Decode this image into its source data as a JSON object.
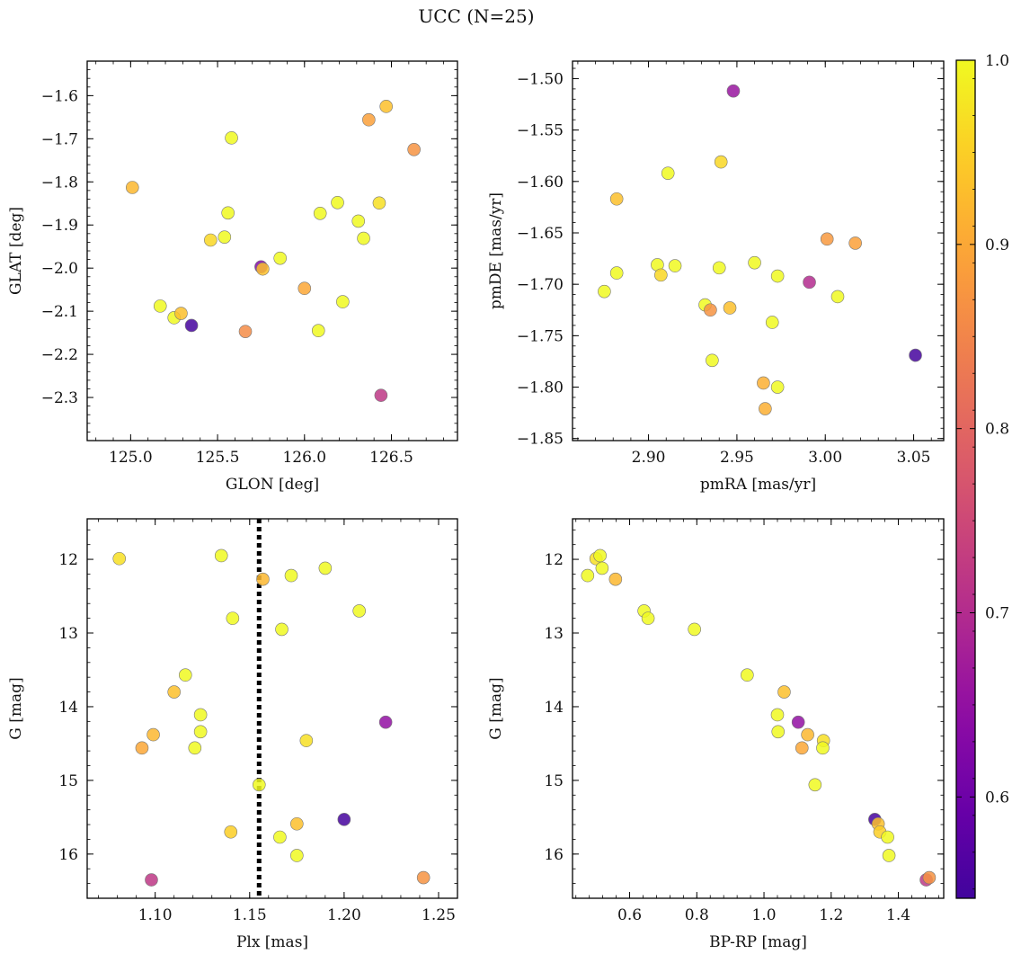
{
  "suptitle": "UCC (N=25)",
  "chart_data": {
    "type": "scatter",
    "colorbar": {
      "label": "",
      "min": 0.545,
      "max": 1.0,
      "ticks": [
        0.6,
        0.7,
        0.8,
        0.9,
        1.0
      ],
      "tick_labels": [
        "0.6",
        "0.7",
        "0.8",
        "0.9",
        "1.0"
      ],
      "colormap": "plasma"
    },
    "panels": [
      {
        "id": "glon-glat",
        "xlabel": "GLON [deg]",
        "ylabel": "GLAT [deg]",
        "xlim": [
          124.75,
          126.88
        ],
        "ylim": [
          -2.4,
          -1.52
        ],
        "y_inverted": false,
        "xticks": [
          125.0,
          125.5,
          126.0,
          126.5
        ],
        "xtick_labels": [
          "125.0",
          "125.5",
          "126.0",
          "126.5"
        ],
        "yticks": [
          -1.6,
          -1.7,
          -1.8,
          -1.9,
          -2.0,
          -2.1,
          -2.2,
          -2.3
        ],
        "ytick_labels": [
          "−1.6",
          "−1.7",
          "−1.8",
          "−1.9",
          "−2.0",
          "−2.1",
          "−2.2",
          "−2.3"
        ],
        "points": [
          {
            "x": 125.01,
            "y": -1.813,
            "c": 0.92
          },
          {
            "x": 125.17,
            "y": -2.088,
            "c": 1.0
          },
          {
            "x": 125.25,
            "y": -2.115,
            "c": 1.0
          },
          {
            "x": 125.29,
            "y": -2.105,
            "c": 0.93
          },
          {
            "x": 125.35,
            "y": -2.133,
            "c": 0.55
          },
          {
            "x": 125.46,
            "y": -1.935,
            "c": 0.96
          },
          {
            "x": 125.54,
            "y": -1.928,
            "c": 1.0
          },
          {
            "x": 125.56,
            "y": -1.872,
            "c": 1.0
          },
          {
            "x": 125.58,
            "y": -1.698,
            "c": 1.0
          },
          {
            "x": 125.66,
            "y": -2.147,
            "c": 0.86
          },
          {
            "x": 125.75,
            "y": -1.997,
            "c": 0.63
          },
          {
            "x": 125.76,
            "y": -2.002,
            "c": 0.93
          },
          {
            "x": 125.86,
            "y": -1.977,
            "c": 1.0
          },
          {
            "x": 126.0,
            "y": -2.047,
            "c": 0.9
          },
          {
            "x": 126.08,
            "y": -2.145,
            "c": 1.0
          },
          {
            "x": 126.09,
            "y": -1.873,
            "c": 1.0
          },
          {
            "x": 126.19,
            "y": -1.848,
            "c": 1.0
          },
          {
            "x": 126.22,
            "y": -2.078,
            "c": 1.0
          },
          {
            "x": 126.31,
            "y": -1.891,
            "c": 1.0
          },
          {
            "x": 126.34,
            "y": -1.931,
            "c": 1.0
          },
          {
            "x": 126.37,
            "y": -1.656,
            "c": 0.89
          },
          {
            "x": 126.43,
            "y": -1.849,
            "c": 0.97
          },
          {
            "x": 126.44,
            "y": -2.295,
            "c": 0.72
          },
          {
            "x": 126.47,
            "y": -1.625,
            "c": 0.93
          },
          {
            "x": 126.63,
            "y": -1.725,
            "c": 0.87
          }
        ]
      },
      {
        "id": "pmra-pmde",
        "xlabel": "pmRA [mas/yr]",
        "ylabel": "pmDE [mas/yr]",
        "xlim": [
          2.857,
          3.067
        ],
        "ylim": [
          -1.852,
          -1.483
        ],
        "y_inverted": false,
        "xticks": [
          2.9,
          2.95,
          3.0,
          3.05
        ],
        "xtick_labels": [
          "2.90",
          "2.95",
          "3.00",
          "3.05"
        ],
        "yticks": [
          -1.5,
          -1.55,
          -1.6,
          -1.65,
          -1.7,
          -1.75,
          -1.8,
          -1.85
        ],
        "ytick_labels": [
          "−1.50",
          "−1.55",
          "−1.60",
          "−1.65",
          "−1.70",
          "−1.75",
          "−1.80",
          "−1.85"
        ],
        "points": [
          {
            "x": 2.948,
            "y": -1.512,
            "c": 0.66
          },
          {
            "x": 2.941,
            "y": -1.581,
            "c": 0.96
          },
          {
            "x": 2.911,
            "y": -1.592,
            "c": 1.0
          },
          {
            "x": 2.882,
            "y": -1.617,
            "c": 0.93
          },
          {
            "x": 3.001,
            "y": -1.656,
            "c": 0.88
          },
          {
            "x": 3.017,
            "y": -1.66,
            "c": 0.89
          },
          {
            "x": 2.905,
            "y": -1.681,
            "c": 1.0
          },
          {
            "x": 2.915,
            "y": -1.682,
            "c": 1.0
          },
          {
            "x": 2.96,
            "y": -1.679,
            "c": 1.0
          },
          {
            "x": 2.94,
            "y": -1.684,
            "c": 1.0
          },
          {
            "x": 2.882,
            "y": -1.689,
            "c": 1.0
          },
          {
            "x": 2.907,
            "y": -1.691,
            "c": 0.96
          },
          {
            "x": 2.973,
            "y": -1.692,
            "c": 1.0
          },
          {
            "x": 2.991,
            "y": -1.698,
            "c": 0.7
          },
          {
            "x": 2.875,
            "y": -1.707,
            "c": 1.0
          },
          {
            "x": 3.007,
            "y": -1.712,
            "c": 1.0
          },
          {
            "x": 2.932,
            "y": -1.72,
            "c": 1.0
          },
          {
            "x": 2.946,
            "y": -1.723,
            "c": 0.93
          },
          {
            "x": 2.935,
            "y": -1.725,
            "c": 0.87
          },
          {
            "x": 2.97,
            "y": -1.737,
            "c": 1.0
          },
          {
            "x": 3.051,
            "y": -1.769,
            "c": 0.55
          },
          {
            "x": 2.936,
            "y": -1.774,
            "c": 1.0
          },
          {
            "x": 2.965,
            "y": -1.796,
            "c": 0.91
          },
          {
            "x": 2.973,
            "y": -1.8,
            "c": 1.0
          },
          {
            "x": 2.966,
            "y": -1.821,
            "c": 0.91
          }
        ]
      },
      {
        "id": "plx-g",
        "xlabel": "Plx [mas]",
        "ylabel": "G [mag]",
        "xlim": [
          1.064,
          1.26
        ],
        "ylim": [
          11.45,
          16.6
        ],
        "y_inverted": true,
        "xticks": [
          1.1,
          1.15,
          1.2,
          1.25
        ],
        "xtick_labels": [
          "1.10",
          "1.15",
          "1.20",
          "1.25"
        ],
        "yticks": [
          12,
          13,
          14,
          15,
          16
        ],
        "ytick_labels": [
          "12",
          "13",
          "14",
          "15",
          "16"
        ],
        "vline": {
          "x": 1.155,
          "style": "dotted",
          "color": "#000000"
        },
        "points": [
          {
            "x": 1.081,
            "y": 11.99,
            "c": 0.97
          },
          {
            "x": 1.135,
            "y": 11.95,
            "c": 1.0
          },
          {
            "x": 1.157,
            "y": 12.27,
            "c": 0.92
          },
          {
            "x": 1.172,
            "y": 12.22,
            "c": 1.0
          },
          {
            "x": 1.19,
            "y": 12.12,
            "c": 1.0
          },
          {
            "x": 1.141,
            "y": 12.8,
            "c": 1.0
          },
          {
            "x": 1.208,
            "y": 12.7,
            "c": 1.0
          },
          {
            "x": 1.167,
            "y": 12.95,
            "c": 1.0
          },
          {
            "x": 1.116,
            "y": 13.57,
            "c": 1.0
          },
          {
            "x": 1.11,
            "y": 13.8,
            "c": 0.93
          },
          {
            "x": 1.124,
            "y": 14.11,
            "c": 1.0
          },
          {
            "x": 1.099,
            "y": 14.38,
            "c": 0.92
          },
          {
            "x": 1.124,
            "y": 14.34,
            "c": 1.0
          },
          {
            "x": 1.093,
            "y": 14.56,
            "c": 0.9
          },
          {
            "x": 1.121,
            "y": 14.56,
            "c": 1.0
          },
          {
            "x": 1.18,
            "y": 14.46,
            "c": 0.97
          },
          {
            "x": 1.222,
            "y": 14.21,
            "c": 0.65
          },
          {
            "x": 1.155,
            "y": 15.06,
            "c": 1.0
          },
          {
            "x": 1.2,
            "y": 15.53,
            "c": 0.55
          },
          {
            "x": 1.175,
            "y": 15.59,
            "c": 0.93
          },
          {
            "x": 1.14,
            "y": 15.7,
            "c": 0.95
          },
          {
            "x": 1.166,
            "y": 15.77,
            "c": 1.0
          },
          {
            "x": 1.175,
            "y": 16.02,
            "c": 1.0
          },
          {
            "x": 1.098,
            "y": 16.35,
            "c": 0.72
          },
          {
            "x": 1.242,
            "y": 16.32,
            "c": 0.87
          }
        ]
      },
      {
        "id": "bprp-g",
        "xlabel": "BP-RP [mag]",
        "ylabel": "G [mag]",
        "xlim": [
          0.43,
          1.535
        ],
        "ylim": [
          11.45,
          16.6
        ],
        "y_inverted": true,
        "xticks": [
          0.6,
          0.8,
          1.0,
          1.2,
          1.4
        ],
        "xtick_labels": [
          "0.6",
          "0.8",
          "1.0",
          "1.2",
          "1.4"
        ],
        "yticks": [
          12,
          13,
          14,
          15,
          16
        ],
        "ytick_labels": [
          "12",
          "13",
          "14",
          "15",
          "16"
        ],
        "points": [
          {
            "x": 0.475,
            "y": 12.22,
            "c": 1.0
          },
          {
            "x": 0.5,
            "y": 11.99,
            "c": 0.97
          },
          {
            "x": 0.512,
            "y": 11.95,
            "c": 1.0
          },
          {
            "x": 0.518,
            "y": 12.12,
            "c": 1.0
          },
          {
            "x": 0.558,
            "y": 12.27,
            "c": 0.92
          },
          {
            "x": 0.643,
            "y": 12.7,
            "c": 1.0
          },
          {
            "x": 0.655,
            "y": 12.8,
            "c": 1.0
          },
          {
            "x": 0.793,
            "y": 12.95,
            "c": 1.0
          },
          {
            "x": 0.95,
            "y": 13.57,
            "c": 1.0
          },
          {
            "x": 1.06,
            "y": 13.8,
            "c": 0.93
          },
          {
            "x": 1.04,
            "y": 14.11,
            "c": 1.0
          },
          {
            "x": 1.102,
            "y": 14.21,
            "c": 0.65
          },
          {
            "x": 1.042,
            "y": 14.34,
            "c": 1.0
          },
          {
            "x": 1.13,
            "y": 14.38,
            "c": 0.92
          },
          {
            "x": 1.177,
            "y": 14.46,
            "c": 0.97
          },
          {
            "x": 1.113,
            "y": 14.56,
            "c": 0.9
          },
          {
            "x": 1.175,
            "y": 14.56,
            "c": 1.0
          },
          {
            "x": 1.152,
            "y": 15.06,
            "c": 1.0
          },
          {
            "x": 1.33,
            "y": 15.53,
            "c": 0.55
          },
          {
            "x": 1.34,
            "y": 15.59,
            "c": 0.93
          },
          {
            "x": 1.345,
            "y": 15.7,
            "c": 0.95
          },
          {
            "x": 1.368,
            "y": 15.77,
            "c": 1.0
          },
          {
            "x": 1.372,
            "y": 16.02,
            "c": 1.0
          },
          {
            "x": 1.483,
            "y": 16.35,
            "c": 0.72
          },
          {
            "x": 1.492,
            "y": 16.32,
            "c": 0.87
          }
        ]
      }
    ]
  }
}
